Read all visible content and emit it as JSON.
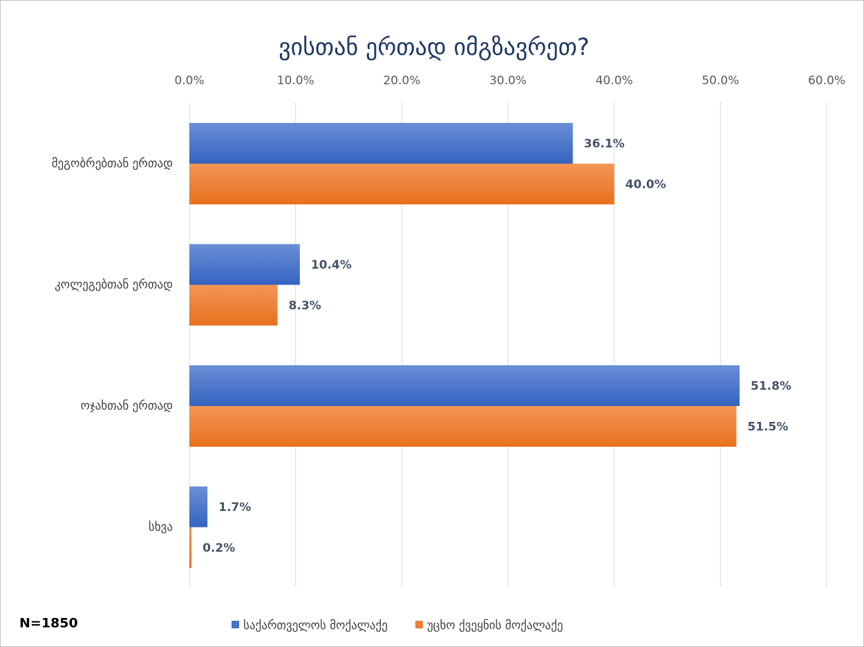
{
  "chart_data": {
    "type": "bar",
    "orientation": "horizontal",
    "title": "ვისთან ერთად იმგზავრეთ?",
    "categories": [
      "მეგობრებთან ერთად",
      "კოლეგებთან ერთად",
      "ოჯახთან ერთად",
      "სხვა"
    ],
    "series": [
      {
        "name": "საქართველოს მოქალაქე",
        "color": "#4472c4",
        "values": [
          36.1,
          10.4,
          51.8,
          1.7
        ],
        "value_labels": [
          "36.1%",
          "10.4%",
          "51.8%",
          "1.7%"
        ]
      },
      {
        "name": "უცხო ქვეყნის მოქალაქე",
        "color": "#ed7d31",
        "values": [
          40.0,
          8.3,
          51.5,
          0.2
        ],
        "value_labels": [
          "40.0%",
          "8.3%",
          "51.5%",
          "0.2%"
        ]
      }
    ],
    "xlim": [
      0,
      60
    ],
    "xticks": [
      {
        "value": 0,
        "label": "0.0%"
      },
      {
        "value": 10,
        "label": "10.0%"
      },
      {
        "value": 20,
        "label": "20.0%"
      },
      {
        "value": 30,
        "label": "30.0%"
      },
      {
        "value": 40,
        "label": "40.0%"
      },
      {
        "value": 50,
        "label": "50.0%"
      },
      {
        "value": 60,
        "label": "60.0%"
      }
    ],
    "grid": true,
    "legend": "bottom",
    "annotation": "N=1850"
  }
}
